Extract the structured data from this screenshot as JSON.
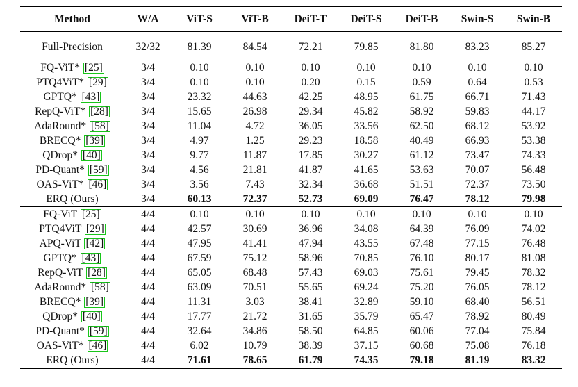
{
  "columns": [
    "Method",
    "W/A",
    "ViT-S",
    "ViT-B",
    "DeiT-T",
    "DeiT-S",
    "DeiT-B",
    "Swin-S",
    "Swin-B"
  ],
  "full_precision": {
    "method": "Full-Precision",
    "wa": "32/32",
    "values": [
      "81.39",
      "84.54",
      "72.21",
      "79.85",
      "81.80",
      "83.23",
      "85.27"
    ]
  },
  "groups": [
    {
      "rows": [
        {
          "name": "FQ-ViT*",
          "cite": "25",
          "wa": "3/4",
          "values": [
            "0.10",
            "0.10",
            "0.10",
            "0.10",
            "0.10",
            "0.10",
            "0.10"
          ],
          "bold": false
        },
        {
          "name": "PTQ4ViT*",
          "cite": "29",
          "wa": "3/4",
          "values": [
            "0.10",
            "0.10",
            "0.20",
            "0.15",
            "0.59",
            "0.64",
            "0.53"
          ],
          "bold": false
        },
        {
          "name": "GPTQ*",
          "cite": "43",
          "wa": "3/4",
          "values": [
            "23.32",
            "44.63",
            "42.25",
            "48.95",
            "61.75",
            "66.71",
            "71.43"
          ],
          "bold": false
        },
        {
          "name": "RepQ-ViT*",
          "cite": "28",
          "wa": "3/4",
          "values": [
            "15.65",
            "26.98",
            "29.34",
            "45.82",
            "58.92",
            "59.83",
            "44.17"
          ],
          "bold": false
        },
        {
          "name": "AdaRound*",
          "cite": "58",
          "wa": "3/4",
          "values": [
            "11.04",
            "4.72",
            "36.05",
            "33.56",
            "62.50",
            "68.12",
            "53.92"
          ],
          "bold": false
        },
        {
          "name": "BRECQ*",
          "cite": "39",
          "wa": "3/4",
          "values": [
            "4.97",
            "1.25",
            "29.23",
            "18.58",
            "40.49",
            "66.93",
            "53.38"
          ],
          "bold": false
        },
        {
          "name": "QDrop*",
          "cite": "40",
          "wa": "3/4",
          "values": [
            "9.77",
            "11.87",
            "17.85",
            "30.27",
            "61.12",
            "73.47",
            "74.33"
          ],
          "bold": false
        },
        {
          "name": "PD-Quant*",
          "cite": "59",
          "wa": "3/4",
          "values": [
            "4.56",
            "21.81",
            "41.87",
            "41.65",
            "53.63",
            "70.07",
            "56.48"
          ],
          "bold": false
        },
        {
          "name": "OAS-ViT*",
          "cite": "46",
          "wa": "3/4",
          "values": [
            "3.56",
            "7.43",
            "32.34",
            "36.68",
            "51.51",
            "72.37",
            "73.50"
          ],
          "bold": false
        },
        {
          "name": "ERQ (Ours)",
          "cite": "",
          "wa": "3/4",
          "values": [
            "60.13",
            "72.37",
            "52.73",
            "69.09",
            "76.47",
            "78.12",
            "79.98"
          ],
          "bold": true
        }
      ]
    },
    {
      "rows": [
        {
          "name": "FQ-ViT",
          "cite": "25",
          "wa": "4/4",
          "values": [
            "0.10",
            "0.10",
            "0.10",
            "0.10",
            "0.10",
            "0.10",
            "0.10"
          ],
          "bold": false
        },
        {
          "name": "PTQ4ViT",
          "cite": "29",
          "wa": "4/4",
          "values": [
            "42.57",
            "30.69",
            "36.96",
            "34.08",
            "64.39",
            "76.09",
            "74.02"
          ],
          "bold": false
        },
        {
          "name": "APQ-ViT",
          "cite": "42",
          "wa": "4/4",
          "values": [
            "47.95",
            "41.41",
            "47.94",
            "43.55",
            "67.48",
            "77.15",
            "76.48"
          ],
          "bold": false
        },
        {
          "name": "GPTQ*",
          "cite": "43",
          "wa": "4/4",
          "values": [
            "67.59",
            "75.12",
            "58.96",
            "70.85",
            "76.10",
            "80.17",
            "81.08"
          ],
          "bold": false
        },
        {
          "name": "RepQ-ViT",
          "cite": "28",
          "wa": "4/4",
          "values": [
            "65.05",
            "68.48",
            "57.43",
            "69.03",
            "75.61",
            "79.45",
            "78.32"
          ],
          "bold": false
        },
        {
          "name": "AdaRound*",
          "cite": "58",
          "wa": "4/4",
          "values": [
            "63.09",
            "70.51",
            "55.65",
            "69.24",
            "75.20",
            "76.05",
            "78.12"
          ],
          "bold": false
        },
        {
          "name": "BRECQ*",
          "cite": "39",
          "wa": "4/4",
          "values": [
            "11.31",
            "3.03",
            "38.41",
            "32.89",
            "59.10",
            "68.40",
            "56.51"
          ],
          "bold": false
        },
        {
          "name": "QDrop*",
          "cite": "40",
          "wa": "4/4",
          "values": [
            "17.77",
            "21.72",
            "31.65",
            "35.79",
            "65.47",
            "78.92",
            "80.49"
          ],
          "bold": false
        },
        {
          "name": "PD-Quant*",
          "cite": "59",
          "wa": "4/4",
          "values": [
            "32.64",
            "34.86",
            "58.50",
            "64.85",
            "60.06",
            "77.04",
            "75.84"
          ],
          "bold": false
        },
        {
          "name": "OAS-ViT*",
          "cite": "46",
          "wa": "4/4",
          "values": [
            "6.02",
            "10.79",
            "38.39",
            "37.15",
            "60.68",
            "75.08",
            "76.18"
          ],
          "bold": false
        },
        {
          "name": "ERQ (Ours)",
          "cite": "",
          "wa": "4/4",
          "values": [
            "71.61",
            "78.65",
            "61.79",
            "74.35",
            "79.18",
            "81.19",
            "83.32"
          ],
          "bold": true
        }
      ]
    }
  ]
}
